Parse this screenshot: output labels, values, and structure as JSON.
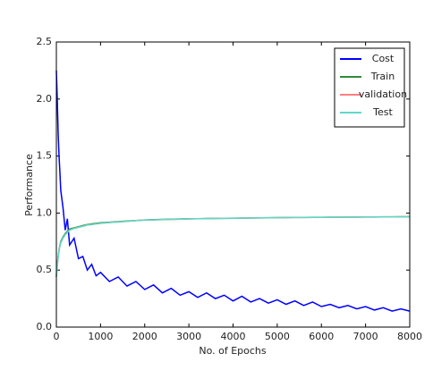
{
  "chart_data": {
    "type": "line",
    "xlabel": "No. of Epochs",
    "ylabel": "Performance",
    "x": [
      0,
      20,
      40,
      60,
      80,
      100,
      150,
      200,
      250,
      300,
      400,
      500,
      600,
      700,
      800,
      900,
      1000,
      1200,
      1400,
      1600,
      1800,
      2000,
      2200,
      2400,
      2600,
      2800,
      3000,
      3200,
      3400,
      3600,
      3800,
      4000,
      4200,
      4400,
      4600,
      4800,
      5000,
      5200,
      5400,
      5600,
      5800,
      6000,
      6200,
      6400,
      6600,
      6800,
      7000,
      7200,
      7400,
      7600,
      7800,
      8000
    ],
    "series": [
      {
        "name": "Cost",
        "color": "#0000ff",
        "values": [
          2.25,
          2.0,
          1.7,
          1.5,
          1.35,
          1.2,
          1.05,
          0.85,
          0.95,
          0.72,
          0.78,
          0.6,
          0.62,
          0.5,
          0.55,
          0.45,
          0.48,
          0.4,
          0.44,
          0.36,
          0.4,
          0.33,
          0.37,
          0.3,
          0.34,
          0.28,
          0.31,
          0.26,
          0.3,
          0.25,
          0.28,
          0.23,
          0.27,
          0.22,
          0.25,
          0.21,
          0.24,
          0.2,
          0.23,
          0.19,
          0.22,
          0.18,
          0.2,
          0.17,
          0.19,
          0.16,
          0.18,
          0.15,
          0.17,
          0.14,
          0.16,
          0.14
        ]
      },
      {
        "name": "Train",
        "color": "#2e8b3a",
        "values": [
          0.45,
          0.55,
          0.62,
          0.68,
          0.72,
          0.75,
          0.79,
          0.82,
          0.84,
          0.86,
          0.87,
          0.88,
          0.89,
          0.9,
          0.905,
          0.91,
          0.915,
          0.92,
          0.925,
          0.93,
          0.935,
          0.94,
          0.942,
          0.944,
          0.946,
          0.948,
          0.95,
          0.951,
          0.952,
          0.953,
          0.954,
          0.955,
          0.956,
          0.957,
          0.958,
          0.959,
          0.96,
          0.961,
          0.962,
          0.962,
          0.963,
          0.963,
          0.964,
          0.964,
          0.965,
          0.965,
          0.966,
          0.966,
          0.967,
          0.967,
          0.968,
          0.968
        ]
      },
      {
        "name": "validation",
        "color": "#ff7f7f",
        "values": [
          0.44,
          0.54,
          0.61,
          0.67,
          0.71,
          0.74,
          0.78,
          0.81,
          0.83,
          0.85,
          0.865,
          0.875,
          0.885,
          0.895,
          0.9,
          0.905,
          0.91,
          0.917,
          0.922,
          0.928,
          0.933,
          0.938,
          0.94,
          0.942,
          0.944,
          0.946,
          0.948,
          0.95,
          0.951,
          0.952,
          0.953,
          0.954,
          0.955,
          0.956,
          0.957,
          0.958,
          0.959,
          0.96,
          0.961,
          0.961,
          0.962,
          0.962,
          0.963,
          0.963,
          0.964,
          0.964,
          0.965,
          0.965,
          0.966,
          0.966,
          0.967,
          0.967
        ]
      },
      {
        "name": "Test",
        "color": "#5fd8c8",
        "values": [
          0.44,
          0.54,
          0.61,
          0.67,
          0.71,
          0.74,
          0.78,
          0.81,
          0.83,
          0.85,
          0.865,
          0.875,
          0.885,
          0.895,
          0.9,
          0.905,
          0.91,
          0.917,
          0.922,
          0.928,
          0.933,
          0.938,
          0.94,
          0.942,
          0.944,
          0.946,
          0.948,
          0.95,
          0.951,
          0.952,
          0.953,
          0.954,
          0.955,
          0.956,
          0.957,
          0.958,
          0.959,
          0.96,
          0.961,
          0.961,
          0.962,
          0.962,
          0.963,
          0.963,
          0.964,
          0.964,
          0.965,
          0.965,
          0.966,
          0.966,
          0.967,
          0.967
        ]
      }
    ],
    "xlim": [
      0,
      8000
    ],
    "xticks": [
      0,
      1000,
      2000,
      3000,
      4000,
      5000,
      6000,
      7000,
      8000
    ],
    "ylim": [
      0,
      2.5
    ],
    "yticks": [
      {
        "value": 0,
        "label": "0.0"
      },
      0.5,
      {
        "value": 1,
        "label": "1.0"
      },
      1.5,
      {
        "value": 2,
        "label": "2.0"
      },
      2.5
    ],
    "legend": "upper right"
  }
}
